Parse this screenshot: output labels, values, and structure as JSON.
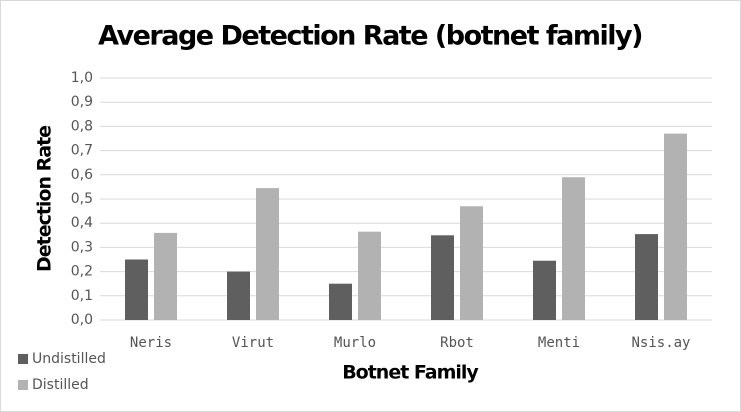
{
  "chart_data": {
    "type": "bar",
    "title": "Average Detection Rate (botnet family)",
    "x_label": "Botnet Family",
    "y_label": "Detection Rate",
    "categories": [
      "Neris",
      "Virut",
      "Murlo",
      "Rbot",
      "Menti",
      "Nsis.ay"
    ],
    "series": [
      {
        "name": "Undistilled",
        "color": "#5f5f5f",
        "values": [
          0.25,
          0.2,
          0.15,
          0.35,
          0.245,
          0.355
        ]
      },
      {
        "name": "Distilled",
        "color": "#b2b2b2",
        "values": [
          0.36,
          0.545,
          0.365,
          0.47,
          0.59,
          0.77
        ]
      }
    ],
    "ylim": [
      0,
      1
    ],
    "yticks": [
      {
        "value": 0,
        "label": "0,0"
      },
      {
        "value": 0.1,
        "label": "0,1"
      },
      {
        "value": 0.2,
        "label": "0,2"
      },
      {
        "value": 0.3,
        "label": "0,3"
      },
      {
        "value": 0.4,
        "label": "0,4"
      },
      {
        "value": 0.5,
        "label": "0,5"
      },
      {
        "value": 0.6,
        "label": "0,6"
      },
      {
        "value": 0.7,
        "label": "0,7"
      },
      {
        "value": 0.8,
        "label": "0,8"
      },
      {
        "value": 0.9,
        "label": "0,9"
      },
      {
        "value": 1,
        "label": "1,0"
      }
    ],
    "grid": true,
    "legend": "bottom-left"
  }
}
